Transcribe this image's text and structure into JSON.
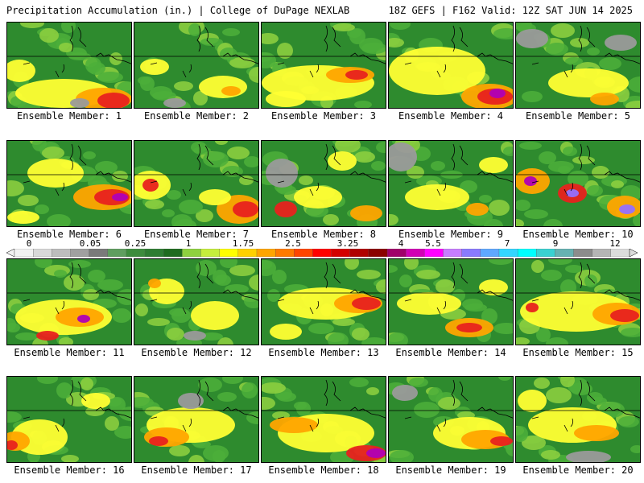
{
  "header": {
    "left": "Precipitation Accumulation (in.) | College of DuPage NEXLAB",
    "right": "18Z GEFS | F162 Valid: 12Z SAT JUN 14 2025"
  },
  "member_label_prefix": "Ensemble Member: ",
  "members": [
    1,
    2,
    3,
    4,
    5,
    6,
    7,
    8,
    9,
    10,
    11,
    12,
    13,
    14,
    15,
    16,
    17,
    18,
    19,
    20
  ],
  "legend": {
    "labels": [
      "0",
      "0.05",
      "0.25",
      "1",
      "1.75",
      "2.5",
      "3.25",
      "4",
      "5.5",
      "7",
      "9",
      "12"
    ],
    "colors": [
      "#f2f2f2",
      "#d9d9d9",
      "#bdbdbd",
      "#a0a0a0",
      "#7a7a7a",
      "#5f9e5f",
      "#3d8c3d",
      "#2e7d32",
      "#1f6b1f",
      "#8fd13f",
      "#c6ee3c",
      "#ffff00",
      "#ffd000",
      "#ffa500",
      "#ff7a00",
      "#ff4500",
      "#ff0000",
      "#d40000",
      "#b00000",
      "#8b0000",
      "#a0006a",
      "#d100b4",
      "#ff00ff",
      "#c77dff",
      "#8a7aff",
      "#5fa8ff",
      "#33d6ff",
      "#00ffff",
      "#3ad1d1",
      "#66b2b2",
      "#8c8c8c",
      "#b5b5b5",
      "#dcdcdc"
    ]
  },
  "colors": {
    "low_green": "#2e8b2e",
    "mid_green": "#4caf3a",
    "light_green": "#8fd13f",
    "yellow": "#ffff33",
    "orange": "#ffa500",
    "red": "#e8221e",
    "magenta": "#b000b5",
    "purple": "#9370ff",
    "gray": "#9a9a9a"
  }
}
